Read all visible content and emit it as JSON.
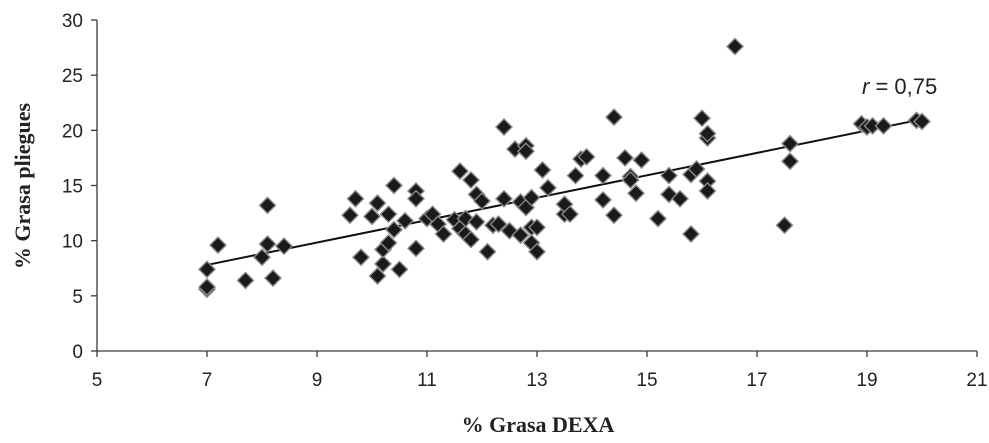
{
  "chart_data": {
    "type": "scatter",
    "title": "",
    "xlabel": "% Grasa DEXA",
    "ylabel": "% Grasa pliegues",
    "xlim": [
      5,
      21
    ],
    "ylim": [
      0,
      30
    ],
    "xticks": [
      "5",
      "7",
      "9",
      "11",
      "13",
      "15",
      "17",
      "19",
      "21"
    ],
    "yticks": [
      "0",
      "5",
      "10",
      "15",
      "20",
      "25",
      "30"
    ],
    "grid": false,
    "legend": "none",
    "annotation": {
      "r_symbol": "r",
      "r_value": " = 0,75"
    },
    "marker_color": "#1a1a1a",
    "trendline": {
      "from": [
        7.0,
        7.8
      ],
      "to": [
        20.0,
        21.0
      ]
    },
    "points": [
      [
        7.0,
        5.6
      ],
      [
        7.0,
        5.8
      ],
      [
        7.0,
        7.4
      ],
      [
        7.2,
        9.6
      ],
      [
        7.7,
        6.4
      ],
      [
        8.0,
        8.5
      ],
      [
        8.1,
        9.7
      ],
      [
        8.1,
        13.2
      ],
      [
        8.2,
        6.6
      ],
      [
        8.4,
        9.5
      ],
      [
        9.6,
        12.3
      ],
      [
        9.7,
        13.8
      ],
      [
        9.8,
        8.5
      ],
      [
        10.0,
        12.2
      ],
      [
        10.1,
        13.4
      ],
      [
        10.1,
        6.8
      ],
      [
        10.2,
        7.9
      ],
      [
        10.2,
        9.2
      ],
      [
        10.3,
        9.8
      ],
      [
        10.3,
        12.4
      ],
      [
        10.4,
        11.0
      ],
      [
        10.4,
        15.0
      ],
      [
        10.5,
        7.4
      ],
      [
        10.6,
        11.8
      ],
      [
        10.8,
        14.5
      ],
      [
        10.8,
        13.8
      ],
      [
        10.8,
        9.3
      ],
      [
        11.0,
        12.0
      ],
      [
        11.1,
        12.4
      ],
      [
        11.2,
        11.5
      ],
      [
        11.3,
        10.6
      ],
      [
        11.5,
        11.9
      ],
      [
        11.6,
        11.1
      ],
      [
        11.6,
        16.3
      ],
      [
        11.7,
        10.6
      ],
      [
        11.7,
        12.0
      ],
      [
        11.8,
        15.5
      ],
      [
        11.8,
        10.1
      ],
      [
        11.9,
        14.2
      ],
      [
        11.9,
        11.7
      ],
      [
        12.0,
        13.6
      ],
      [
        12.1,
        9.0
      ],
      [
        12.2,
        11.4
      ],
      [
        12.3,
        11.5
      ],
      [
        12.4,
        20.3
      ],
      [
        12.4,
        13.8
      ],
      [
        12.5,
        10.9
      ],
      [
        12.6,
        18.3
      ],
      [
        12.7,
        10.5
      ],
      [
        12.7,
        13.5
      ],
      [
        12.8,
        18.6
      ],
      [
        12.8,
        18.1
      ],
      [
        12.8,
        13.0
      ],
      [
        12.9,
        11.2
      ],
      [
        12.9,
        13.9
      ],
      [
        12.9,
        9.8
      ],
      [
        13.0,
        9.0
      ],
      [
        13.0,
        11.2
      ],
      [
        13.1,
        16.4
      ],
      [
        13.2,
        14.8
      ],
      [
        13.5,
        12.4
      ],
      [
        13.5,
        13.3
      ],
      [
        13.6,
        12.4
      ],
      [
        13.7,
        15.9
      ],
      [
        13.8,
        17.4
      ],
      [
        13.9,
        17.6
      ],
      [
        14.2,
        15.9
      ],
      [
        14.2,
        13.7
      ],
      [
        14.4,
        21.2
      ],
      [
        14.4,
        12.3
      ],
      [
        14.6,
        17.5
      ],
      [
        14.7,
        15.8
      ],
      [
        14.7,
        15.5
      ],
      [
        14.8,
        14.3
      ],
      [
        14.9,
        17.3
      ],
      [
        15.2,
        12.0
      ],
      [
        15.4,
        15.9
      ],
      [
        15.4,
        14.2
      ],
      [
        15.6,
        13.8
      ],
      [
        15.8,
        10.6
      ],
      [
        15.8,
        16.0
      ],
      [
        15.9,
        16.5
      ],
      [
        16.0,
        21.1
      ],
      [
        16.1,
        15.4
      ],
      [
        16.1,
        19.3
      ],
      [
        16.1,
        19.7
      ],
      [
        16.1,
        14.5
      ],
      [
        16.6,
        27.6
      ],
      [
        17.5,
        11.4
      ],
      [
        17.6,
        18.8
      ],
      [
        17.6,
        17.2
      ],
      [
        18.9,
        20.6
      ],
      [
        19.0,
        20.3
      ],
      [
        19.1,
        20.4
      ],
      [
        19.3,
        20.4
      ],
      [
        19.9,
        20.9
      ],
      [
        20.0,
        20.8
      ]
    ]
  }
}
